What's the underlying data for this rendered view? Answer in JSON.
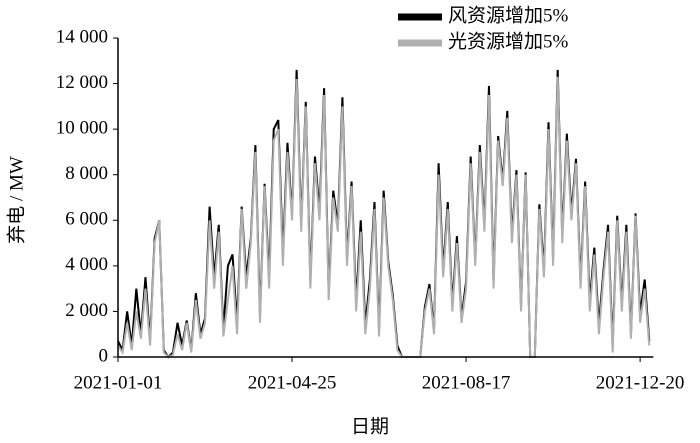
{
  "chart_data": {
    "type": "line",
    "xlabel": "日期",
    "ylabel": "弃电 / MW",
    "categories": [
      "2021-01-01",
      null,
      null,
      null,
      null,
      null,
      null,
      null,
      null,
      null,
      null,
      null,
      null,
      null,
      null,
      null,
      null,
      null,
      null,
      null,
      null,
      null,
      null,
      null,
      null,
      null,
      null,
      null,
      null,
      null,
      null,
      null,
      null,
      null,
      null,
      null,
      null,
      null,
      "2021-04-25",
      null,
      null,
      null,
      null,
      null,
      null,
      null,
      null,
      null,
      null,
      null,
      null,
      null,
      null,
      null,
      null,
      null,
      null,
      null,
      null,
      null,
      null,
      null,
      null,
      null,
      null,
      null,
      null,
      null,
      null,
      null,
      null,
      null,
      null,
      null,
      null,
      null,
      "2021-08-17",
      null,
      null,
      null,
      null,
      null,
      null,
      null,
      null,
      null,
      null,
      null,
      null,
      null,
      null,
      null,
      null,
      null,
      null,
      null,
      null,
      null,
      null,
      null,
      null,
      null,
      null,
      null,
      null,
      null,
      null,
      null,
      null,
      null,
      null,
      null,
      null,
      null,
      "2021-12-20",
      null,
      null
    ],
    "series": [
      {
        "name": "风资源增加5%",
        "color": "#000000",
        "values": [
          700,
          300,
          2000,
          500,
          3000,
          1000,
          3500,
          700,
          5200,
          6000,
          300,
          0,
          200,
          1500,
          500,
          1600,
          300,
          2800,
          1000,
          1700,
          6600,
          3500,
          5800,
          1200,
          4000,
          4500,
          1500,
          6600,
          3500,
          5200,
          9300,
          1800,
          7600,
          3500,
          10000,
          10400,
          4500,
          9400,
          6200,
          12600,
          5800,
          11200,
          3300,
          8800,
          6400,
          11800,
          2800,
          7300,
          5800,
          11400,
          4300,
          7700,
          2400,
          6000,
          1400,
          3400,
          6800,
          1200,
          7300,
          4200,
          2700,
          500,
          0,
          0,
          0,
          0,
          0,
          2200,
          3200,
          1200,
          8500,
          3800,
          6800,
          2300,
          5300,
          1700,
          3300,
          8800,
          4200,
          9300,
          5800,
          11900,
          3300,
          9700,
          7700,
          10800,
          5300,
          8200,
          2200,
          8100,
          0,
          0,
          6700,
          3800,
          10300,
          4300,
          12600,
          5300,
          9800,
          6300,
          8700,
          3300,
          7700,
          2400,
          4800,
          1400,
          3800,
          5800,
          500,
          6200,
          2300,
          5800,
          1000,
          6300,
          1900,
          3400,
          700
        ]
      },
      {
        "name": "光资源增加5%",
        "color": "#b0b0b0",
        "values": [
          500,
          200,
          1500,
          300,
          2000,
          800,
          3000,
          500,
          5000,
          6000,
          200,
          0,
          100,
          1000,
          300,
          1500,
          200,
          2500,
          800,
          1500,
          6000,
          3000,
          5500,
          900,
          2500,
          4000,
          1000,
          6500,
          3000,
          5000,
          9000,
          1500,
          7500,
          3000,
          9500,
          10000,
          4000,
          9000,
          6000,
          12200,
          5500,
          11000,
          3000,
          8500,
          6000,
          11500,
          2500,
          7000,
          5500,
          11000,
          4000,
          7500,
          2000,
          5500,
          1000,
          3000,
          6500,
          900,
          7000,
          4000,
          2500,
          300,
          0,
          0,
          0,
          0,
          0,
          2000,
          3000,
          1000,
          8000,
          3500,
          6500,
          2000,
          5000,
          1500,
          3000,
          8500,
          4000,
          9000,
          5500,
          11500,
          3000,
          9500,
          7500,
          10500,
          5000,
          8000,
          2000,
          8000,
          0,
          0,
          6500,
          3500,
          10000,
          4000,
          12300,
          5000,
          9500,
          6000,
          8500,
          3000,
          7500,
          2000,
          4500,
          1000,
          3500,
          5500,
          200,
          6000,
          2000,
          5500,
          800,
          6200,
          1500,
          3000,
          500
        ]
      }
    ],
    "ylim": [
      0,
      14000
    ],
    "yticks": [
      0,
      {
        "value": 2000,
        "label": "2 000"
      },
      {
        "value": 4000,
        "label": "4 000"
      },
      {
        "value": 6000,
        "label": "6 000"
      },
      {
        "value": 8000,
        "label": "8 000"
      },
      {
        "value": 10000,
        "label": "10 000"
      },
      {
        "value": 12000,
        "label": "12 000"
      },
      {
        "value": 14000,
        "label": "14 000"
      }
    ],
    "legend": "upper right"
  }
}
